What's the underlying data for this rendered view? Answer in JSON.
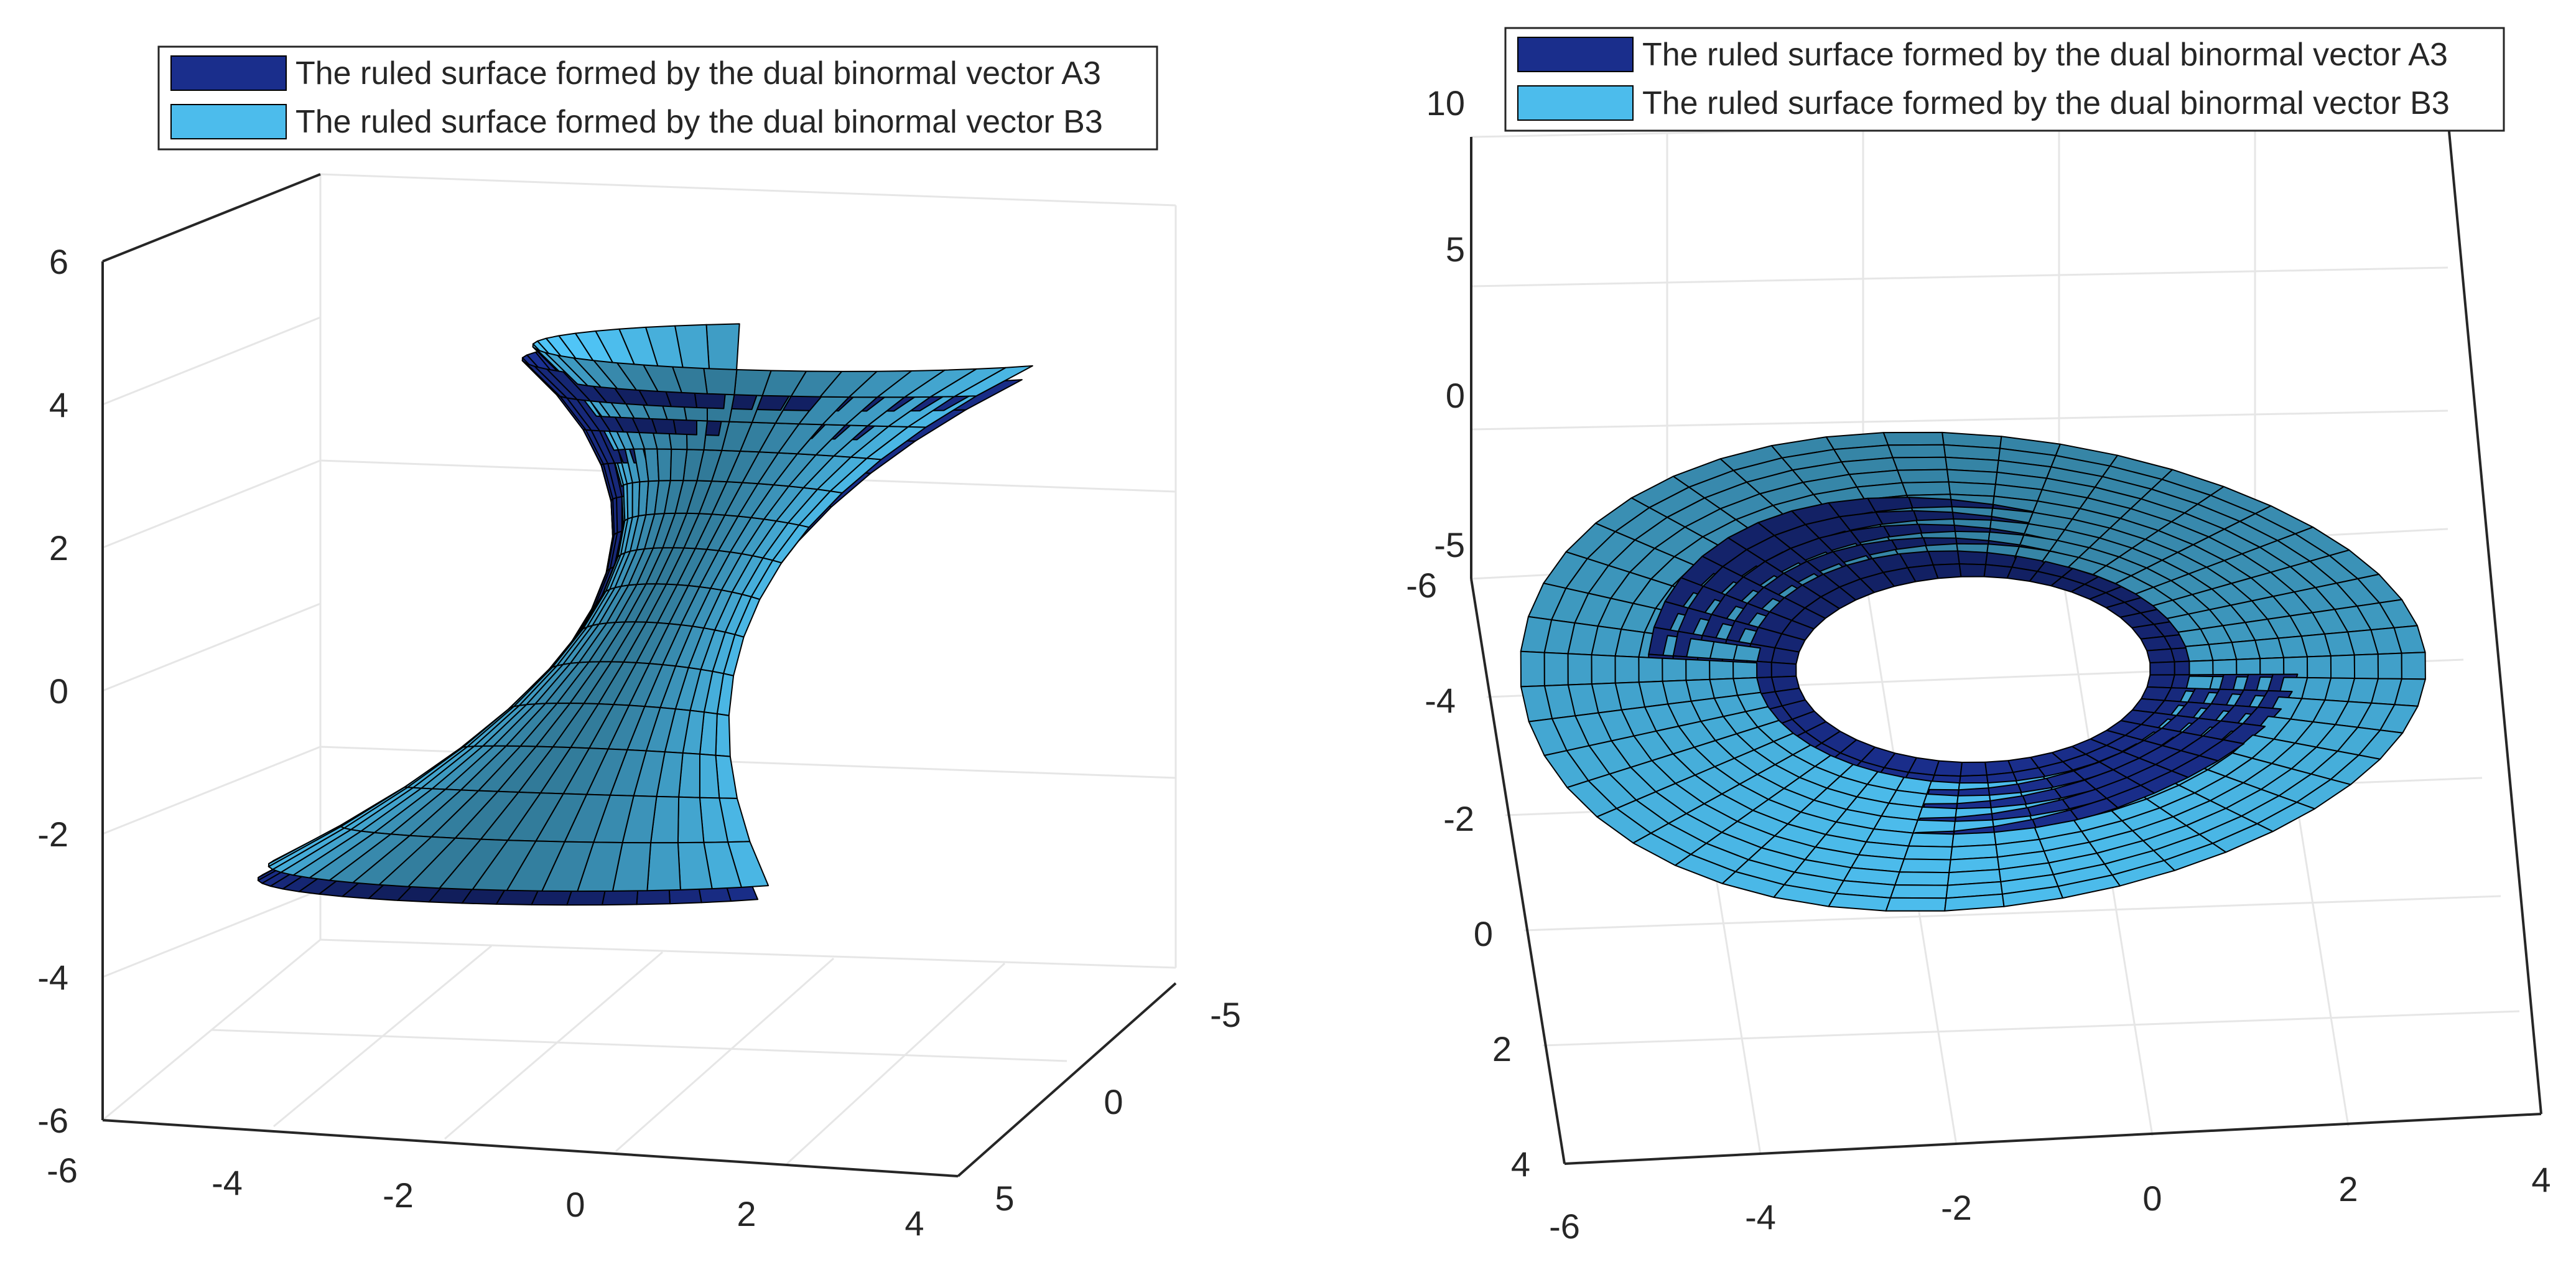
{
  "chart_data": [
    {
      "type": "surface",
      "panel": "left",
      "legend": {
        "placement": "top",
        "entries": [
          {
            "label": "The ruled surface formed by the dual binormal vector A3",
            "color": "#1a2e8c"
          },
          {
            "label": "The ruled surface formed by the dual binormal vector B3",
            "color": "#4cbcec"
          }
        ]
      },
      "x_ticks": [
        "-6",
        "-4",
        "-2",
        "0",
        "2",
        "4"
      ],
      "y_ticks": [
        "-5",
        "0",
        "5"
      ],
      "z_ticks": [
        "-6",
        "-4",
        "-2",
        "0",
        "2",
        "4",
        "6"
      ],
      "xlim": [
        -6,
        4
      ],
      "ylim": [
        -5,
        5
      ],
      "zlim": [
        -6,
        6
      ],
      "grid": true,
      "series": [
        {
          "name": "A3",
          "color": "#1a2e8c",
          "surface": "hyperbolic_ruled_sheet",
          "u_range": [
            0,
            6.283
          ],
          "v_range": [
            -4,
            4
          ]
        },
        {
          "name": "B3",
          "color": "#4cbcec",
          "surface": "hyperbolic_ruled_sheet",
          "u_range": [
            0,
            6.283
          ],
          "v_range": [
            -4,
            4
          ]
        }
      ]
    },
    {
      "type": "surface",
      "panel": "right",
      "legend": {
        "placement": "top",
        "entries": [
          {
            "label": "The ruled surface formed by the dual binormal vector A3",
            "color": "#1a2e8c"
          },
          {
            "label": "The ruled surface formed by the dual binormal vector B3",
            "color": "#4cbcec"
          }
        ]
      },
      "x_ticks": [
        "-6",
        "-4",
        "-2",
        "0",
        "2",
        "4"
      ],
      "y_ticks": [
        "-6",
        "-4",
        "-2",
        "0",
        "2",
        "4"
      ],
      "z_ticks": [
        "-5",
        "0",
        "5",
        "10"
      ],
      "xlim": [
        -6,
        4
      ],
      "ylim": [
        -6,
        4
      ],
      "zlim": [
        -5,
        10
      ],
      "grid": true,
      "series": [
        {
          "name": "A3",
          "color": "#1a2e8c",
          "surface": "annular_sheet",
          "r_range": [
            1.8,
            3.3
          ]
        },
        {
          "name": "B3",
          "color": "#4cbcec",
          "surface": "annular_sheet",
          "r_range": [
            2.2,
            4.6
          ]
        }
      ]
    }
  ]
}
